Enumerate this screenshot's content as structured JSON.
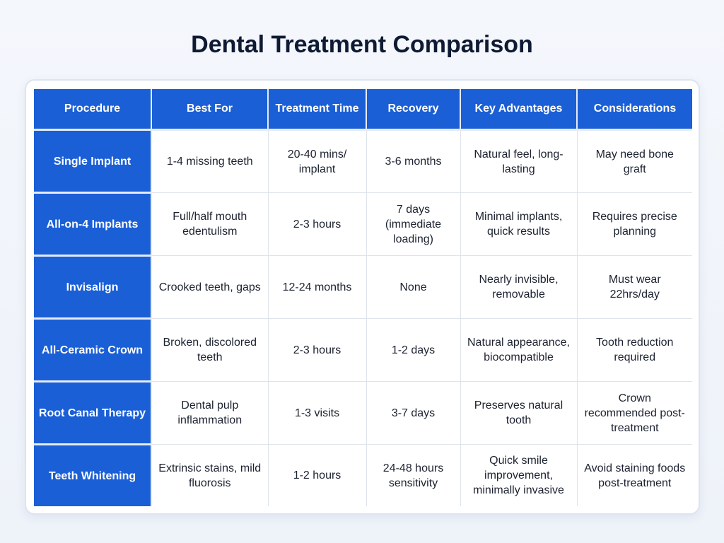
{
  "header": {
    "title": "Dental Treatment Comparison"
  },
  "table": {
    "columns": [
      "Procedure",
      "Best For",
      "Treatment Time",
      "Recovery",
      "Key Advantages",
      "Considerations"
    ],
    "rows": [
      [
        "Single Implant",
        "1-4 missing teeth",
        "20-40 mins/ implant",
        "3-6 months",
        "Natural feel, long-lasting",
        "May need bone graft"
      ],
      [
        "All-on-4 Implants",
        "Full/half mouth edentulism",
        "2-3 hours",
        "7 days (immediate loading)",
        "Minimal implants, quick results",
        "Requires precise planning"
      ],
      [
        "Invisalign",
        "Crooked teeth, gaps",
        "12-24 months",
        "None",
        "Nearly invisible, removable",
        "Must wear 22hrs/day"
      ],
      [
        "All-Ceramic Crown",
        "Broken, discolored teeth",
        "2-3 hours",
        "1-2 days",
        "Natural appearance, biocompatible",
        "Tooth reduction required"
      ],
      [
        "Root Canal Therapy",
        "Dental pulp inflammation",
        "1-3 visits",
        "3-7 days",
        "Preserves natural tooth",
        "Crown recommended post-treatment"
      ],
      [
        "Teeth Whitening",
        "Extrinsic stains, mild fluorosis",
        "1-2 hours",
        "24-48 hours sensitivity",
        "Quick smile improvement, minimally invasive",
        "Avoid staining foods post-treatment"
      ]
    ]
  }
}
